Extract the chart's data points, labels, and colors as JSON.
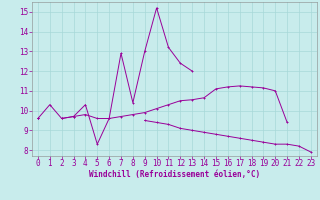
{
  "background_color": "#c8ecec",
  "line_color": "#990099",
  "grid_color": "#a8d8d8",
  "xlabel": "Windchill (Refroidissement éolien,°C)",
  "x_values": [
    0,
    1,
    2,
    3,
    4,
    5,
    6,
    7,
    8,
    9,
    10,
    11,
    12,
    13,
    14,
    15,
    16,
    17,
    18,
    19,
    20,
    21,
    22,
    23
  ],
  "line1_y": [
    9.6,
    10.3,
    9.6,
    9.7,
    10.3,
    8.3,
    9.6,
    12.9,
    10.4,
    13.0,
    15.2,
    13.2,
    12.4,
    12.0,
    null,
    null,
    null,
    null,
    null,
    null,
    null,
    null,
    null,
    null
  ],
  "line2_y": [
    9.6,
    null,
    9.6,
    9.7,
    9.8,
    9.6,
    9.6,
    9.7,
    9.8,
    9.9,
    10.1,
    10.3,
    10.5,
    10.55,
    10.65,
    11.1,
    11.2,
    11.25,
    11.2,
    11.15,
    11.0,
    9.4,
    null,
    null
  ],
  "line3_y": [
    9.6,
    null,
    null,
    null,
    null,
    null,
    null,
    null,
    null,
    9.5,
    9.4,
    9.3,
    9.1,
    9.0,
    8.9,
    8.8,
    8.7,
    8.6,
    8.5,
    8.4,
    8.3,
    8.3,
    8.2,
    7.9
  ],
  "ylim_min": 7.7,
  "ylim_max": 15.5,
  "xlim_min": -0.5,
  "xlim_max": 23.5,
  "yticks": [
    8,
    9,
    10,
    11,
    12,
    13,
    14,
    15
  ],
  "xticks": [
    0,
    1,
    2,
    3,
    4,
    5,
    6,
    7,
    8,
    9,
    10,
    11,
    12,
    13,
    14,
    15,
    16,
    17,
    18,
    19,
    20,
    21,
    22,
    23
  ],
  "tick_fontsize": 5.5,
  "xlabel_fontsize": 5.5,
  "marker_size": 2.0,
  "linewidth": 0.7
}
